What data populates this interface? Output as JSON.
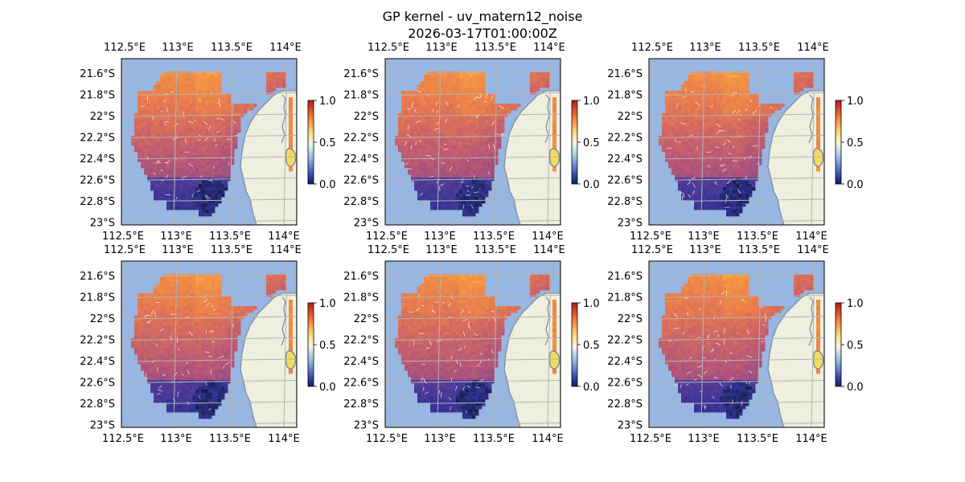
{
  "figure": {
    "title_line1": "GP kernel - uv_matern12_noise",
    "title_line2": "2026-03-17T01:00:00Z"
  },
  "map": {
    "lon_ticks": [
      "112.5°E",
      "113°E",
      "113.5°E",
      "114°E"
    ],
    "lat_ticks": [
      "21.6°S",
      "21.8°S",
      "22°S",
      "22.2°S",
      "22.4°S",
      "22.6°S",
      "22.8°S",
      "23°S"
    ],
    "colorbar_ticks": [
      "0.0",
      "0.5",
      "1.0"
    ],
    "colormap": "RdYlBu_r",
    "colorbar_range": [
      0.0,
      1.0
    ],
    "colors": {
      "ocean": "#97b6e1",
      "land": "#efefdf",
      "coast": "#7f8fa3",
      "grid": "#b4b4b4",
      "field_high": "#f28a3c",
      "field_mid": "#c25a6e",
      "field_low": "#3d3aa0",
      "field_min": "#0f1e3a"
    },
    "gridlines": true,
    "overlay": "white velocity arrows",
    "panel_count": 6,
    "layout": "2 rows x 3 columns"
  }
}
